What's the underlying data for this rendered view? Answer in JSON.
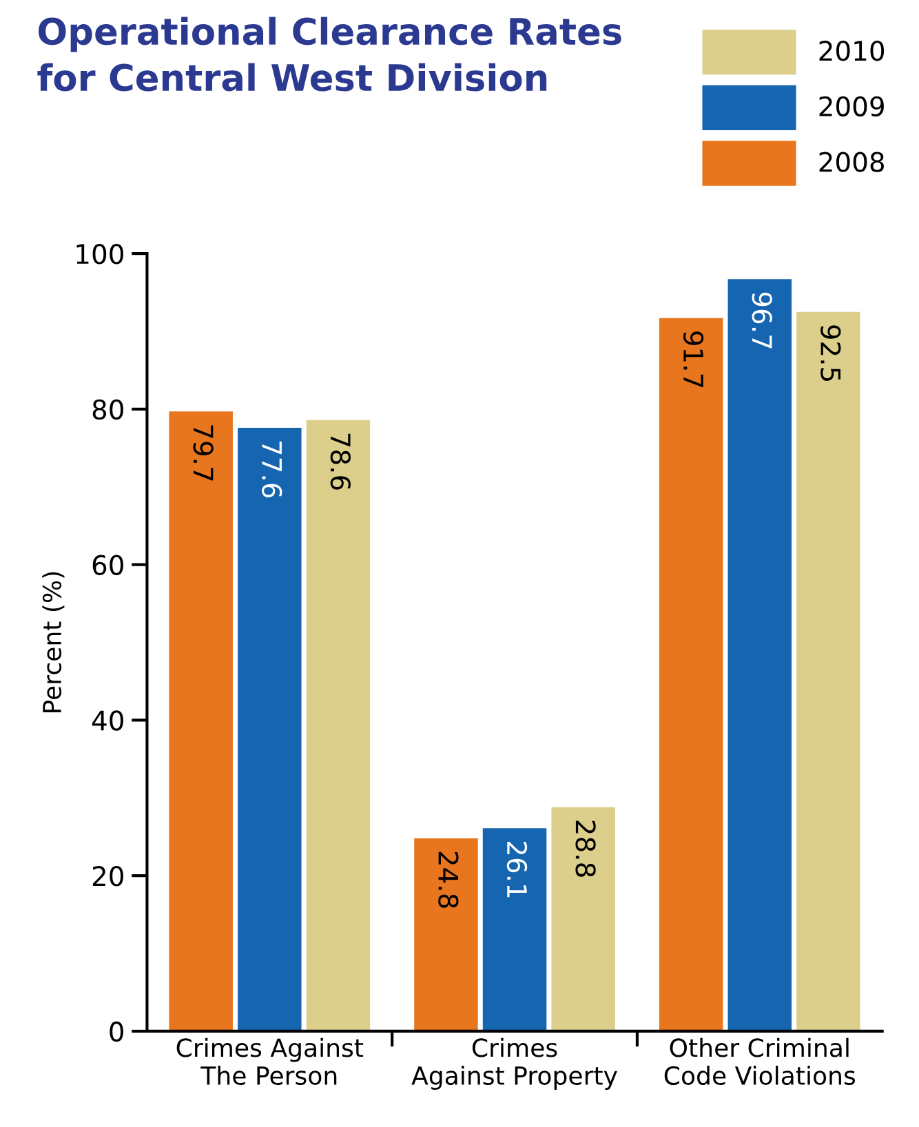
{
  "chart_data": {
    "type": "bar",
    "title": "Operational Clearance Rates\nfor Central West Division",
    "ylabel": "Percent (%)",
    "categories": [
      "Crimes Against\nThe Person",
      "Crimes\nAgainst Property",
      "Other Criminal\nCode Violations"
    ],
    "series": [
      {
        "name": "2008",
        "color": "#e8761e",
        "values": [
          79.7,
          24.8,
          91.7
        ]
      },
      {
        "name": "2009",
        "color": "#1565b0",
        "values": [
          77.6,
          26.1,
          96.7
        ]
      },
      {
        "name": "2010",
        "color": "#dccf8c",
        "values": [
          78.6,
          28.8,
          92.5
        ]
      }
    ],
    "ylim": [
      0,
      100
    ],
    "yticks": [
      0,
      20,
      40,
      60,
      80,
      100
    ],
    "data_labels": true,
    "legend": "top right",
    "grid": false
  }
}
